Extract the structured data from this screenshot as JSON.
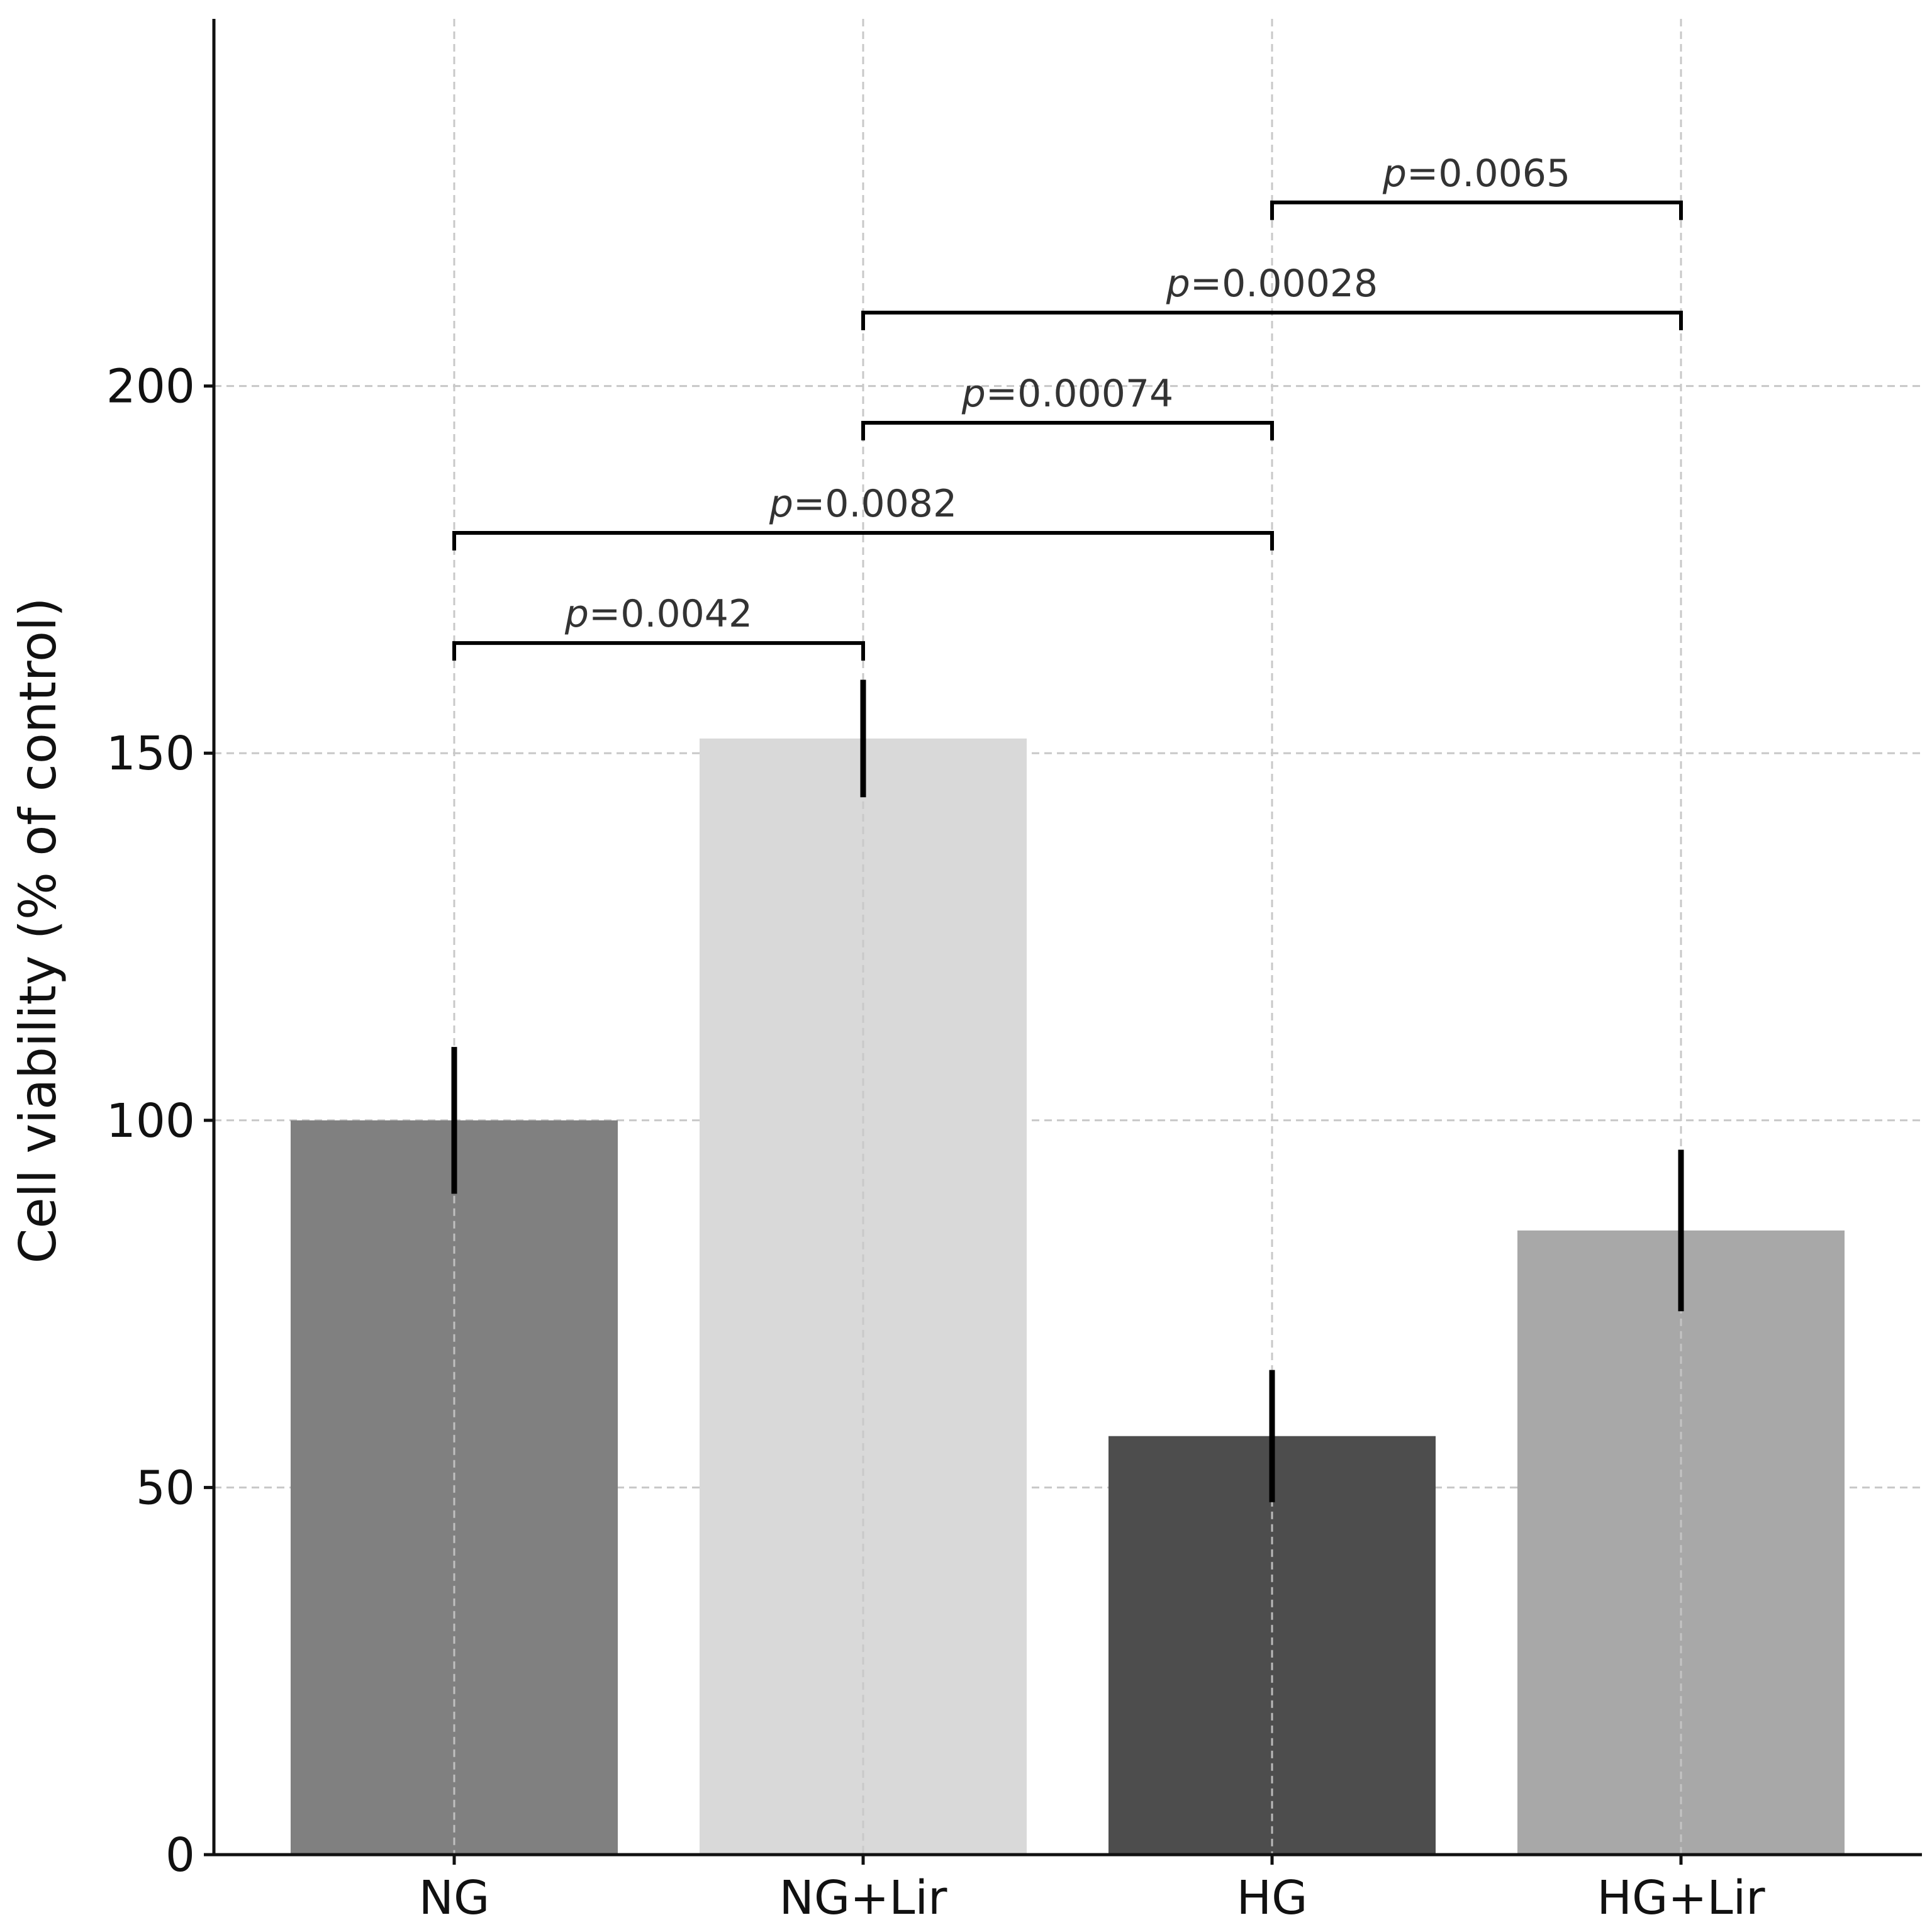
{
  "chart_data": {
    "type": "bar",
    "categories": [
      "NG",
      "NG+Lir",
      "HG",
      "HG+Lir"
    ],
    "values": [
      100,
      152,
      57,
      85
    ],
    "errors": [
      10,
      8,
      9,
      11
    ],
    "colors": [
      "#808080",
      "#d9d9d9",
      "#4d4d4d",
      "#a8a8a8"
    ],
    "ylabel": "Cell viability (% of control)",
    "xlabel": "",
    "ylim": [
      0,
      250
    ],
    "yticks": [
      0,
      50,
      100,
      150,
      200
    ],
    "ytick_labels": [
      "0",
      "50",
      "100",
      "150",
      "200"
    ],
    "grid": true,
    "comparisons": [
      {
        "from": 0,
        "to": 1,
        "y": 165,
        "p_symbol": "p",
        "p_text": "=0.0042"
      },
      {
        "from": 0,
        "to": 2,
        "y": 180,
        "p_symbol": "p",
        "p_text": "=0.0082"
      },
      {
        "from": 1,
        "to": 2,
        "y": 195,
        "p_symbol": "p",
        "p_text": "=0.00074"
      },
      {
        "from": 1,
        "to": 3,
        "y": 210,
        "p_symbol": "p",
        "p_text": "=0.00028"
      },
      {
        "from": 2,
        "to": 3,
        "y": 225,
        "p_symbol": "p",
        "p_text": "=0.0065"
      }
    ]
  }
}
